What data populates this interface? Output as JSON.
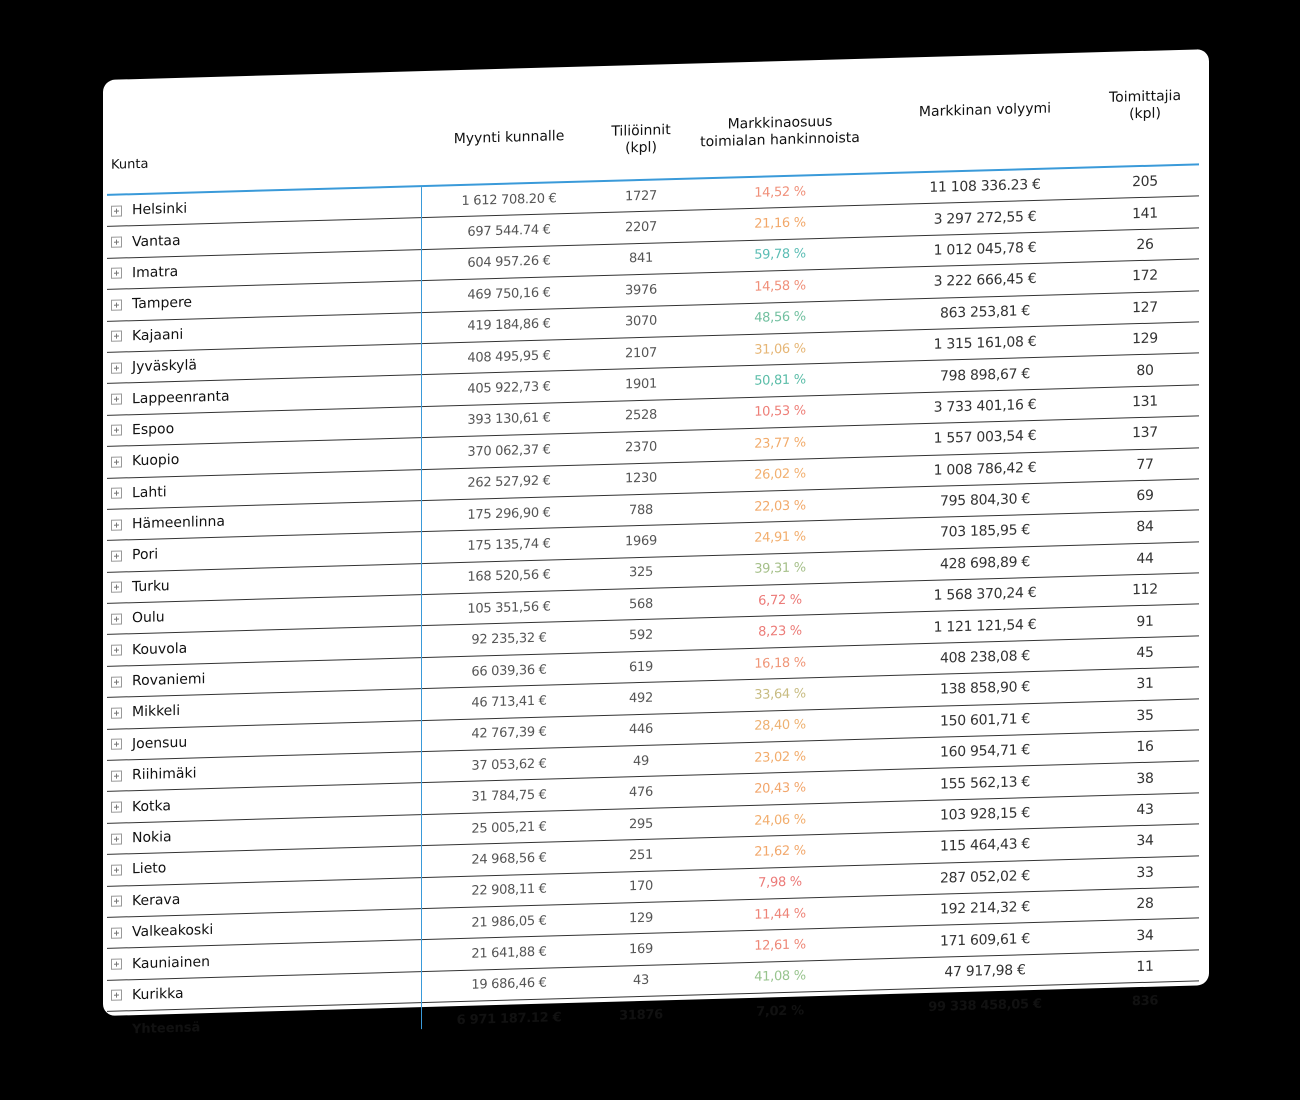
{
  "table": {
    "headers": {
      "kunta": "Kunta",
      "myynti": "Myynti kunnalle",
      "tilioinnit_line1": "Tiliöinnit",
      "tilioinnit_line2": "(kpl)",
      "markkinaosuus_line1": "Markkinaosuus",
      "markkinaosuus_line2": "toimialan hankinnoista",
      "volyymi": "Markkinan volyymi",
      "toimittajia_line1": "Toimittajia",
      "toimittajia_line2": "(kpl)"
    },
    "rows": [
      {
        "kunta": "Helsinki",
        "myynti": "1 612 708.20 €",
        "tilioinnit": "1727",
        "osuus": "14,52 %",
        "osuus_color": "#f0907a",
        "volyymi": "11 108 336.23 €",
        "toimittajia": "205"
      },
      {
        "kunta": "Vantaa",
        "myynti": "697 544.74 €",
        "tilioinnit": "2207",
        "osuus": "21,16 %",
        "osuus_color": "#f2a86a",
        "volyymi": "3 297 272,55 €",
        "toimittajia": "141"
      },
      {
        "kunta": "Imatra",
        "myynti": "604 957.26 €",
        "tilioinnit": "841",
        "osuus": "59,78 %",
        "osuus_color": "#5bbdb4",
        "volyymi": "1 012 045,78 €",
        "toimittajia": "26"
      },
      {
        "kunta": "Tampere",
        "myynti": "469 750,16 €",
        "tilioinnit": "3976",
        "osuus": "14,58 %",
        "osuus_color": "#f0907a",
        "volyymi": "3 222 666,45 €",
        "toimittajia": "172"
      },
      {
        "kunta": "Kajaani",
        "myynti": "419 184,86 €",
        "tilioinnit": "3070",
        "osuus": "48,56 %",
        "osuus_color": "#72c0a0",
        "volyymi": "863 253,81 €",
        "toimittajia": "127"
      },
      {
        "kunta": "Jyväskylä",
        "myynti": "408 495,95 €",
        "tilioinnit": "2107",
        "osuus": "31,06 %",
        "osuus_color": "#e6b676",
        "volyymi": "1 315 161,08 €",
        "toimittajia": "129"
      },
      {
        "kunta": "Lappeenranta",
        "myynti": "405 922,73 €",
        "tilioinnit": "1901",
        "osuus": "50,81 %",
        "osuus_color": "#5bbda8",
        "volyymi": "798 898,67 €",
        "toimittajia": "80"
      },
      {
        "kunta": "Espoo",
        "myynti": "393 130,61 €",
        "tilioinnit": "2528",
        "osuus": "10,53 %",
        "osuus_color": "#ee7f78",
        "volyymi": "3 733 401,16 €",
        "toimittajia": "131"
      },
      {
        "kunta": "Kuopio",
        "myynti": "370 062,37 €",
        "tilioinnit": "2370",
        "osuus": "23,77 %",
        "osuus_color": "#f2ac6c",
        "volyymi": "1 557 003,54 €",
        "toimittajia": "137"
      },
      {
        "kunta": "Lahti",
        "myynti": "262 527,92 €",
        "tilioinnit": "1230",
        "osuus": "26,02 %",
        "osuus_color": "#f2b070",
        "volyymi": "1 008 786,42 €",
        "toimittajia": "77"
      },
      {
        "kunta": "Hämeenlinna",
        "myynti": "175 296,90 €",
        "tilioinnit": "788",
        "osuus": "22,03 %",
        "osuus_color": "#f2aa6c",
        "volyymi": "795 804,30 €",
        "toimittajia": "69"
      },
      {
        "kunta": "Pori",
        "myynti": "175 135,74 €",
        "tilioinnit": "1969",
        "osuus": "24,91 %",
        "osuus_color": "#f2ae6e",
        "volyymi": "703 185,95 €",
        "toimittajia": "84"
      },
      {
        "kunta": "Turku",
        "myynti": "168 520,56 €",
        "tilioinnit": "325",
        "osuus": "39,31 %",
        "osuus_color": "#a6c08a",
        "volyymi": "428 698,89 €",
        "toimittajia": "44"
      },
      {
        "kunta": "Oulu",
        "myynti": "105 351,56 €",
        "tilioinnit": "568",
        "osuus": "6,72 %",
        "osuus_color": "#ec7a78",
        "volyymi": "1 568 370,24 €",
        "toimittajia": "112"
      },
      {
        "kunta": "Kouvola",
        "myynti": "92 235,32 €",
        "tilioinnit": "592",
        "osuus": "8,23 %",
        "osuus_color": "#ec7c78",
        "volyymi": "1 121 121,54 €",
        "toimittajia": "91"
      },
      {
        "kunta": "Rovaniemi",
        "myynti": "66 039,36 €",
        "tilioinnit": "619",
        "osuus": "16,18 %",
        "osuus_color": "#f09678",
        "volyymi": "408 238,08 €",
        "toimittajia": "45"
      },
      {
        "kunta": "Mikkeli",
        "myynti": "46 713,41 €",
        "tilioinnit": "492",
        "osuus": "33,64 %",
        "osuus_color": "#c8bc82",
        "volyymi": "138 858,90 €",
        "toimittajia": "31"
      },
      {
        "kunta": "Joensuu",
        "myynti": "42 767,39 €",
        "tilioinnit": "446",
        "osuus": "28,40 %",
        "osuus_color": "#eeb272",
        "volyymi": "150 601,71 €",
        "toimittajia": "35"
      },
      {
        "kunta": "Riihimäki",
        "myynti": "37 053,62 €",
        "tilioinnit": "49",
        "osuus": "23,02 %",
        "osuus_color": "#f2ac6c",
        "volyymi": "160 954,71 €",
        "toimittajia": "16"
      },
      {
        "kunta": "Kotka",
        "myynti": "31 784,75 €",
        "tilioinnit": "476",
        "osuus": "20,43 %",
        "osuus_color": "#f2a66c",
        "volyymi": "155 562,13 €",
        "toimittajia": "38"
      },
      {
        "kunta": "Nokia",
        "myynti": "25 005,21 €",
        "tilioinnit": "295",
        "osuus": "24,06 %",
        "osuus_color": "#f2ae6e",
        "volyymi": "103 928,15 €",
        "toimittajia": "43"
      },
      {
        "kunta": "Lieto",
        "myynti": "24 968,56 €",
        "tilioinnit": "251",
        "osuus": "21,62 %",
        "osuus_color": "#f2a86c",
        "volyymi": "115 464,43 €",
        "toimittajia": "34"
      },
      {
        "kunta": "Kerava",
        "myynti": "22 908,11 €",
        "tilioinnit": "170",
        "osuus": "7,98 %",
        "osuus_color": "#ec7a78",
        "volyymi": "287 052,02 €",
        "toimittajia": "33"
      },
      {
        "kunta": "Valkeakoski",
        "myynti": "21 986,05 €",
        "tilioinnit": "129",
        "osuus": "11,44 %",
        "osuus_color": "#ee8478",
        "volyymi": "192 214,32 €",
        "toimittajia": "28"
      },
      {
        "kunta": "Kauniainen",
        "myynti": "21 641,88 €",
        "tilioinnit": "169",
        "osuus": "12,61 %",
        "osuus_color": "#ee8878",
        "volyymi": "171 609,61 €",
        "toimittajia": "34"
      },
      {
        "kunta": "Kurikka",
        "myynti": "19 686,46 €",
        "tilioinnit": "43",
        "osuus": "41,08 %",
        "osuus_color": "#98c48e",
        "volyymi": "47 917,98 €",
        "toimittajia": "11"
      }
    ],
    "totals": {
      "label": "Yhteensä",
      "myynti": "6 971 187.12 €",
      "tilioinnit": "31876",
      "osuus": "7,02 %",
      "volyymi": "99 338 458,05 €",
      "toimittajia": "836"
    }
  },
  "colors": {
    "accent_line": "#3a9ad9",
    "low_share": "#ec7a78",
    "mid_share": "#f2ac6c",
    "high_share": "#5bbdb4"
  }
}
